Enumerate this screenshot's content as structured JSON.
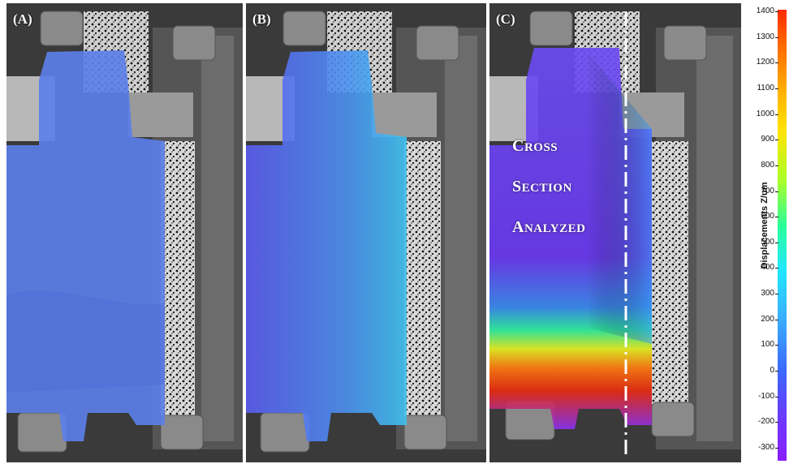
{
  "panels": [
    {
      "label": "(A)",
      "overlay": "uniform-blue"
    },
    {
      "label": "(B)",
      "overlay": "blue-to-cyan"
    },
    {
      "label": "(C)",
      "overlay": "rainbow-gradient"
    }
  ],
  "annotation": {
    "line1_cap": "C",
    "line1_rest": "ROSS",
    "line2_cap": "S",
    "line2_rest": "ECTION",
    "line3_cap": "A",
    "line3_rest": "NALYZED"
  },
  "colorbar": {
    "title": "Displacements Z/um",
    "ticks": [
      "1400",
      "1300",
      "1200",
      "1100",
      "1000",
      "900",
      "800",
      "700",
      "600",
      "500",
      "400",
      "300",
      "200",
      "100",
      "0",
      "-100",
      "-200",
      "-300"
    ],
    "colors": [
      "#ff2a00",
      "#ffe400",
      "#28ff9a",
      "#22e6ff",
      "#3a68ff",
      "#8a1cff"
    ]
  }
}
